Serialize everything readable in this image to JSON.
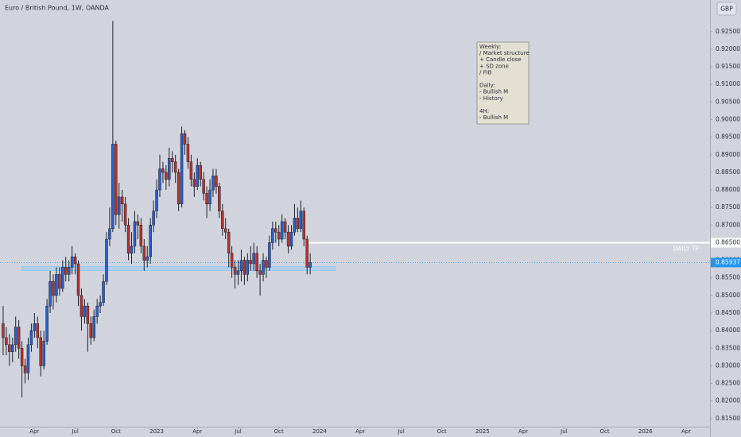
{
  "chart_data": {
    "type": "candlestick",
    "title": "Euro / British Pound, 1W, OANDA",
    "currency": "GBP",
    "x": [
      3,
      4,
      5,
      6,
      7,
      8,
      9,
      10,
      11,
      12,
      13,
      14,
      15,
      16,
      17,
      18,
      19,
      20,
      21,
      22,
      23,
      24,
      25,
      26,
      27,
      28,
      29,
      30,
      31,
      32,
      33,
      34,
      35,
      36,
      37,
      38,
      39,
      40,
      41,
      42,
      43,
      44,
      45,
      46,
      47,
      48,
      49,
      50,
      51,
      52,
      53,
      54,
      55,
      56,
      57,
      58,
      59,
      60,
      61,
      62,
      63,
      64,
      65,
      66,
      67,
      68,
      69,
      70,
      71,
      72,
      73,
      74,
      75,
      76,
      77,
      78,
      79,
      80,
      81,
      82,
      83,
      84,
      85,
      86,
      87,
      88,
      89,
      90,
      91,
      92,
      93,
      94,
      95,
      96,
      97,
      98,
      99,
      100,
      101
    ],
    "open": [
      0.842,
      0.838,
      0.836,
      0.834,
      0.836,
      0.841,
      0.835,
      0.83,
      0.828,
      0.836,
      0.84,
      0.842,
      0.838,
      0.83,
      0.837,
      0.847,
      0.854,
      0.85,
      0.856,
      0.852,
      0.858,
      0.856,
      0.858,
      0.861,
      0.859,
      0.85,
      0.844,
      0.847,
      0.842,
      0.838,
      0.844,
      0.847,
      0.848,
      0.854,
      0.866,
      0.869,
      0.893,
      0.873,
      0.878,
      0.876,
      0.87,
      0.862,
      0.864,
      0.871,
      0.87,
      0.864,
      0.86,
      0.861,
      0.87,
      0.874,
      0.88,
      0.886,
      0.885,
      0.883,
      0.889,
      0.888,
      0.885,
      0.876,
      0.896,
      0.893,
      0.888,
      0.883,
      0.881,
      0.887,
      0.883,
      0.879,
      0.876,
      0.88,
      0.884,
      0.881,
      0.874,
      0.869,
      0.868,
      0.862,
      0.858,
      0.856,
      0.857,
      0.86,
      0.856,
      0.86,
      0.859,
      0.862,
      0.857,
      0.856,
      0.86,
      0.858,
      0.865,
      0.869,
      0.868,
      0.866,
      0.871,
      0.868,
      0.864,
      0.868,
      0.872,
      0.869,
      0.874,
      0.866,
      0.858
    ],
    "high": [
      0.847,
      0.841,
      0.839,
      0.838,
      0.844,
      0.843,
      0.837,
      0.832,
      0.838,
      0.842,
      0.845,
      0.844,
      0.84,
      0.84,
      0.849,
      0.857,
      0.856,
      0.858,
      0.858,
      0.86,
      0.861,
      0.86,
      0.864,
      0.862,
      0.86,
      0.852,
      0.849,
      0.848,
      0.844,
      0.846,
      0.849,
      0.85,
      0.856,
      0.868,
      0.875,
      0.928,
      0.894,
      0.882,
      0.88,
      0.878,
      0.872,
      0.868,
      0.874,
      0.873,
      0.872,
      0.866,
      0.864,
      0.872,
      0.877,
      0.883,
      0.89,
      0.888,
      0.887,
      0.892,
      0.891,
      0.89,
      0.886,
      0.898,
      0.897,
      0.895,
      0.89,
      0.885,
      0.889,
      0.888,
      0.885,
      0.881,
      0.883,
      0.886,
      0.886,
      0.882,
      0.876,
      0.872,
      0.869,
      0.864,
      0.86,
      0.86,
      0.863,
      0.861,
      0.862,
      0.864,
      0.865,
      0.864,
      0.859,
      0.862,
      0.861,
      0.867,
      0.871,
      0.871,
      0.87,
      0.873,
      0.872,
      0.87,
      0.87,
      0.876,
      0.875,
      0.877,
      0.875,
      0.867,
      0.862
    ],
    "low": [
      0.833,
      0.833,
      0.83,
      0.831,
      0.834,
      0.832,
      0.821,
      0.825,
      0.826,
      0.834,
      0.838,
      0.835,
      0.827,
      0.829,
      0.836,
      0.845,
      0.846,
      0.848,
      0.85,
      0.851,
      0.854,
      0.854,
      0.856,
      0.856,
      0.847,
      0.84,
      0.842,
      0.834,
      0.836,
      0.837,
      0.842,
      0.845,
      0.847,
      0.853,
      0.864,
      0.868,
      0.87,
      0.869,
      0.871,
      0.868,
      0.86,
      0.859,
      0.862,
      0.866,
      0.862,
      0.857,
      0.858,
      0.859,
      0.868,
      0.872,
      0.878,
      0.882,
      0.88,
      0.881,
      0.885,
      0.882,
      0.874,
      0.875,
      0.89,
      0.886,
      0.881,
      0.878,
      0.88,
      0.881,
      0.877,
      0.872,
      0.874,
      0.878,
      0.879,
      0.872,
      0.867,
      0.866,
      0.858,
      0.855,
      0.852,
      0.853,
      0.854,
      0.853,
      0.854,
      0.857,
      0.857,
      0.855,
      0.85,
      0.854,
      0.855,
      0.857,
      0.863,
      0.865,
      0.864,
      0.865,
      0.866,
      0.862,
      0.863,
      0.867,
      0.868,
      0.868,
      0.864,
      0.856,
      0.856
    ],
    "close": [
      0.838,
      0.836,
      0.834,
      0.836,
      0.841,
      0.835,
      0.83,
      0.828,
      0.836,
      0.84,
      0.842,
      0.838,
      0.83,
      0.837,
      0.847,
      0.854,
      0.85,
      0.856,
      0.852,
      0.858,
      0.856,
      0.858,
      0.861,
      0.859,
      0.85,
      0.844,
      0.847,
      0.842,
      0.838,
      0.844,
      0.847,
      0.848,
      0.854,
      0.866,
      0.869,
      0.893,
      0.873,
      0.878,
      0.876,
      0.87,
      0.862,
      0.864,
      0.871,
      0.87,
      0.864,
      0.86,
      0.861,
      0.87,
      0.874,
      0.88,
      0.886,
      0.885,
      0.883,
      0.889,
      0.888,
      0.885,
      0.876,
      0.896,
      0.893,
      0.888,
      0.883,
      0.881,
      0.887,
      0.883,
      0.879,
      0.876,
      0.88,
      0.884,
      0.881,
      0.874,
      0.869,
      0.868,
      0.862,
      0.858,
      0.856,
      0.857,
      0.86,
      0.856,
      0.86,
      0.859,
      0.862,
      0.857,
      0.856,
      0.86,
      0.858,
      0.865,
      0.869,
      0.868,
      0.866,
      0.871,
      0.868,
      0.864,
      0.868,
      0.872,
      0.869,
      0.874,
      0.866,
      0.858,
      0.85937
    ],
    "up_color": "#2c5ec9",
    "down_color": "#b8322f",
    "wick_color": "#1e222d",
    "last_price": {
      "value": 0.85937,
      "label": "0.85937",
      "color": "#2196f3"
    },
    "target": {
      "value": 0.865,
      "label": "0.86500",
      "name": "DAILY TP",
      "color": "#ffffff"
    },
    "zone": {
      "x": [
        9,
        109
      ],
      "y": [
        0.8571,
        0.8582
      ],
      "color": "#90caf9"
    },
    "note": [
      "Weekly:",
      "/ Market structure",
      "+ Candle close",
      "+ SD zone",
      "/ FIB",
      "",
      "Daily:",
      "- Bullish M",
      "- History",
      "",
      "4H:",
      "- Bullish M"
    ],
    "xlim": [
      2,
      228.6
    ],
    "ylim": [
      0.8127,
      0.934
    ],
    "xticks": [
      {
        "value": 13,
        "label": "Apr"
      },
      {
        "value": 26,
        "label": "Jul"
      },
      {
        "value": 39,
        "label": "Oct"
      },
      {
        "value": 52,
        "label": "2023"
      },
      {
        "value": 65,
        "label": "Apr"
      },
      {
        "value": 78,
        "label": "Jul"
      },
      {
        "value": 91,
        "label": "Oct"
      },
      {
        "value": 104,
        "label": "2024"
      },
      {
        "value": 117,
        "label": "Apr"
      },
      {
        "value": 130,
        "label": "Jul"
      },
      {
        "value": 143,
        "label": "Oct"
      },
      {
        "value": 156,
        "label": "2025"
      },
      {
        "value": 169,
        "label": "Apr"
      },
      {
        "value": 182,
        "label": "Jul"
      },
      {
        "value": 195,
        "label": "Oct"
      },
      {
        "value": 208,
        "label": "2026"
      },
      {
        "value": 221,
        "label": "Apr"
      }
    ],
    "yticks": [
      {
        "value": 0.815,
        "label": "0.81500"
      },
      {
        "value": 0.82,
        "label": "0.82000"
      },
      {
        "value": 0.825,
        "label": "0.82500"
      },
      {
        "value": 0.83,
        "label": "0.83000"
      },
      {
        "value": 0.835,
        "label": "0.83500"
      },
      {
        "value": 0.84,
        "label": "0.84000"
      },
      {
        "value": 0.845,
        "label": "0.84500"
      },
      {
        "value": 0.85,
        "label": "0.85000"
      },
      {
        "value": 0.855,
        "label": "0.85500"
      },
      {
        "value": 0.86,
        "label": "0.86000"
      },
      {
        "value": 0.865,
        "label": "0.86500"
      },
      {
        "value": 0.87,
        "label": "0.87000"
      },
      {
        "value": 0.875,
        "label": "0.87500"
      },
      {
        "value": 0.88,
        "label": "0.88000"
      },
      {
        "value": 0.885,
        "label": "0.88500"
      },
      {
        "value": 0.89,
        "label": "0.89000"
      },
      {
        "value": 0.895,
        "label": "0.89500"
      },
      {
        "value": 0.9,
        "label": "0.90000"
      },
      {
        "value": 0.905,
        "label": "0.90500"
      },
      {
        "value": 0.91,
        "label": "0.91000"
      },
      {
        "value": 0.915,
        "label": "0.91500"
      },
      {
        "value": 0.92,
        "label": "0.92000"
      },
      {
        "value": 0.925,
        "label": "0.92500"
      }
    ]
  }
}
